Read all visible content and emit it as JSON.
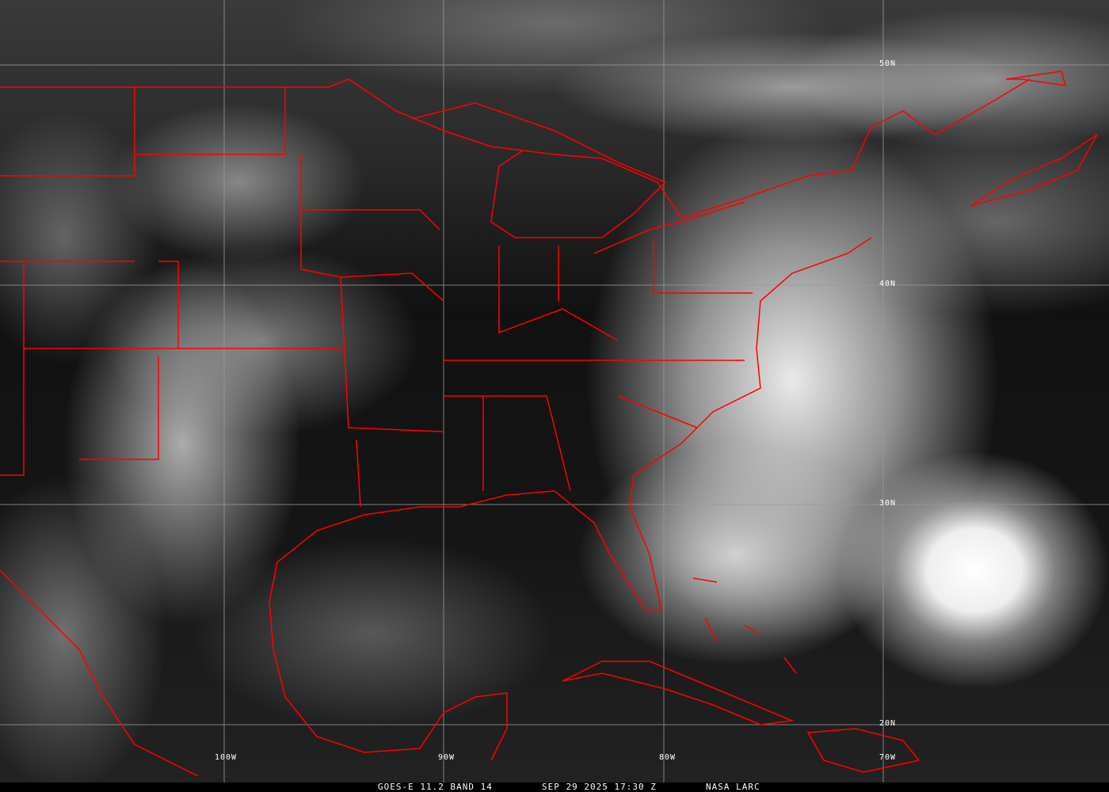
{
  "caption": {
    "satellite": "GOES-E 11.2 BAND 14",
    "datetime": "SEP 29 2025 17:30 Z",
    "source": "NASA LARC"
  },
  "grid": {
    "latitudes": [
      "50N",
      "40N",
      "30N",
      "20N"
    ],
    "longitudes": [
      "100W",
      "90W",
      "80W",
      "70W"
    ]
  },
  "colors": {
    "borders": "#ff0000",
    "gridlines": "#9a9a9a",
    "labels": "#ffffff"
  }
}
